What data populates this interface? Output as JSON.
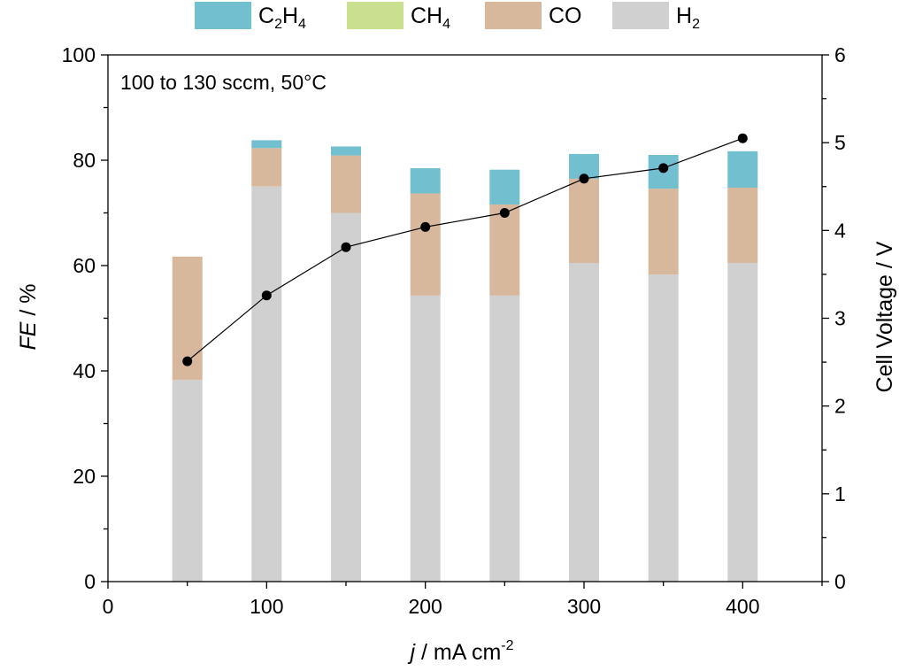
{
  "chart_data": {
    "type": "bar",
    "stacked": true,
    "annotation": "100 to 130 sccm, 50°C",
    "legend_position": "top",
    "grid": false,
    "x_axis": {
      "label_italic": "j",
      "label_rest": " / mA cm",
      "label_sup": "-2",
      "range": [
        0,
        450
      ],
      "ticks": [
        0,
        100,
        200,
        300,
        400
      ]
    },
    "y_axis": {
      "label_italic": "FE",
      "label_rest": " / %",
      "range": [
        0,
        100
      ],
      "ticks": [
        0,
        20,
        40,
        60,
        80,
        100
      ]
    },
    "y2_axis": {
      "label": "Cell Voltage / V",
      "range": [
        0,
        6
      ],
      "ticks": [
        0,
        1,
        2,
        3,
        4,
        5,
        6
      ]
    },
    "x": [
      50,
      100,
      150,
      200,
      250,
      300,
      350,
      400
    ],
    "series": [
      {
        "name": "H",
        "sub": "2",
        "color": "#d0d0d0",
        "values": [
          38.3,
          75.0,
          70.0,
          54.3,
          54.3,
          60.5,
          58.3,
          60.5
        ]
      },
      {
        "name": "CO",
        "sub": "",
        "color": "#d8b89c",
        "values": [
          23.4,
          7.3,
          10.9,
          19.4,
          17.3,
          16.0,
          16.3,
          14.3
        ]
      },
      {
        "name": "CH",
        "sub": "4",
        "color": "#c8e090",
        "values": [
          0,
          0,
          0,
          0,
          0,
          0,
          0,
          0
        ]
      },
      {
        "name": "C",
        "sub": "2",
        "name2": "H",
        "sub2": "4",
        "color": "#72bfd0",
        "values": [
          0,
          1.5,
          1.7,
          4.8,
          6.6,
          4.7,
          6.4,
          6.9
        ]
      }
    ],
    "legend_order": [
      3,
      2,
      1,
      0
    ],
    "voltage": {
      "color": "#000000",
      "values": [
        2.51,
        3.26,
        3.81,
        4.04,
        4.2,
        4.59,
        4.71,
        5.05
      ]
    }
  }
}
